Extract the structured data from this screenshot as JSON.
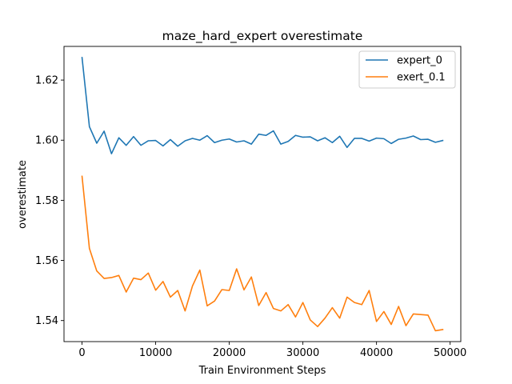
{
  "chart_data": {
    "type": "line",
    "title": "maze_hard_expert overestimate",
    "xlabel": "Train Environment Steps",
    "ylabel": "overestimate",
    "xlim": [
      -2450,
      51450
    ],
    "ylim": [
      1.533,
      1.6312
    ],
    "xticks": [
      0,
      10000,
      20000,
      30000,
      40000,
      50000
    ],
    "xtick_labels": [
      "0",
      "10000",
      "20000",
      "30000",
      "40000",
      "50000"
    ],
    "yticks": [
      1.54,
      1.56,
      1.58,
      1.6,
      1.62
    ],
    "ytick_labels": [
      "1.54",
      "1.56",
      "1.58",
      "1.60",
      "1.62"
    ],
    "grid": false,
    "legend_position": "top-right",
    "x": [
      0,
      1000,
      2000,
      3000,
      4000,
      5000,
      6000,
      7000,
      8000,
      9000,
      10000,
      11000,
      12000,
      13000,
      14000,
      15000,
      16000,
      17000,
      18000,
      19000,
      20000,
      21000,
      22000,
      23000,
      24000,
      25000,
      26000,
      27000,
      28000,
      29000,
      30000,
      31000,
      32000,
      33000,
      34000,
      35000,
      36000,
      37000,
      38000,
      39000,
      40000,
      41000,
      42000,
      43000,
      44000,
      45000,
      46000,
      47000,
      48000,
      49000
    ],
    "series": [
      {
        "name": "expert_0",
        "color": "#1f77b4",
        "values": [
          1.6275,
          1.6045,
          1.599,
          1.603,
          1.5955,
          1.6008,
          1.5983,
          1.6012,
          1.5983,
          1.5998,
          1.5999,
          1.5981,
          1.6002,
          1.598,
          1.5998,
          1.6006,
          1.6,
          1.6015,
          1.5992,
          1.6,
          1.6004,
          1.5994,
          1.5998,
          1.5987,
          1.602,
          1.6016,
          1.6031,
          1.5987,
          1.5996,
          1.6016,
          1.601,
          1.6011,
          1.5998,
          1.6008,
          1.5992,
          1.6013,
          1.5976,
          1.6006,
          1.6006,
          1.5997,
          1.6007,
          1.6005,
          1.5989,
          1.6003,
          1.6007,
          1.6014,
          1.6002,
          1.6003,
          1.5993,
          1.5999
        ]
      },
      {
        "name": "exert_0.1",
        "color": "#ff7f0e",
        "values": [
          1.588,
          1.564,
          1.5565,
          1.554,
          1.5543,
          1.555,
          1.5495,
          1.5541,
          1.5536,
          1.5558,
          1.5501,
          1.553,
          1.5478,
          1.55,
          1.5432,
          1.5515,
          1.5568,
          1.5449,
          1.5465,
          1.5503,
          1.55,
          1.5572,
          1.5502,
          1.5545,
          1.545,
          1.5493,
          1.544,
          1.5432,
          1.5453,
          1.5412,
          1.546,
          1.5402,
          1.538,
          1.5408,
          1.5443,
          1.5408,
          1.5478,
          1.546,
          1.5453,
          1.55,
          1.5397,
          1.543,
          1.5387,
          1.5447,
          1.5383,
          1.5422,
          1.542,
          1.5418,
          1.5366,
          1.537
        ]
      }
    ]
  }
}
